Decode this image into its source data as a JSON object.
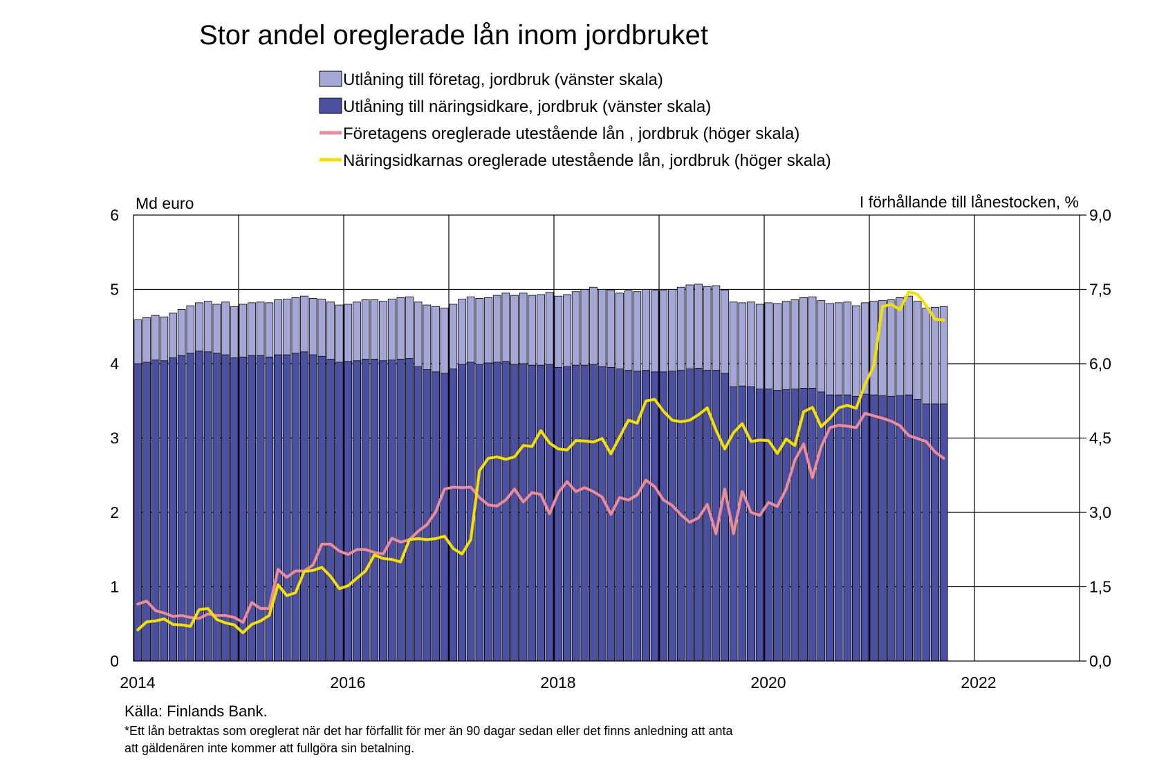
{
  "chart_data": {
    "type": "bar",
    "title": "Stor andel oreglerade lån inom jordbruket",
    "y_left_label": "Md euro",
    "y_right_label": "I förhållande till lånestocken, %",
    "y_left_ticks": [
      "0",
      "1",
      "2",
      "3",
      "4",
      "5",
      "6"
    ],
    "y_right_ticks": [
      "0,0",
      "1,5",
      "3,0",
      "4,5",
      "6,0",
      "7,5",
      "9,0"
    ],
    "ylim_left": [
      0,
      6
    ],
    "ylim_right": [
      0,
      9
    ],
    "x_ticks": [
      "2014",
      "2016",
      "2018",
      "2020",
      "2022"
    ],
    "x_range": [
      "2014-01",
      "2022-12"
    ],
    "grid": "horizontal and yearly vertical",
    "legend_position": "top",
    "colors": {
      "foretag": "#A4A7D6",
      "naringsidkare": "#4A4FA2",
      "foretag_npl": "#EC8C98",
      "naringsidkare_npl": "#F5E100"
    },
    "legend": [
      {
        "label": "Utlåning till företag, jordbruk (vänster skala)",
        "kind": "box",
        "color_key": "foretag"
      },
      {
        "label": "Utlåning till näringsidkare, jordbruk (vänster skala)",
        "kind": "box",
        "color_key": "naringsidkare"
      },
      {
        "label": "Företagens oreglerade utestående lån , jordbruk (höger skala)",
        "kind": "line",
        "color_key": "foretag_npl"
      },
      {
        "label": "Näringsidkarnas oreglerade utestående lån, jordbruk (höger skala)",
        "kind": "line",
        "color_key": "naringsidkare_npl"
      }
    ],
    "x_start": "2014-01",
    "series": [
      {
        "name": "Utlåning till företag, jordbruk (vänster skala)",
        "type": "bar",
        "axis": "left",
        "color_key": "foretag",
        "values": [
          4.59,
          4.62,
          4.65,
          4.63,
          4.68,
          4.73,
          4.78,
          4.82,
          4.84,
          4.8,
          4.83,
          4.77,
          4.8,
          4.82,
          4.83,
          4.82,
          4.86,
          4.87,
          4.89,
          4.91,
          4.88,
          4.87,
          4.83,
          4.79,
          4.8,
          4.83,
          4.86,
          4.86,
          4.84,
          4.87,
          4.89,
          4.9,
          4.83,
          4.79,
          4.77,
          4.75,
          4.8,
          4.87,
          4.9,
          4.88,
          4.89,
          4.92,
          4.95,
          4.92,
          4.95,
          4.92,
          4.93,
          4.96,
          4.91,
          4.93,
          4.97,
          5.0,
          5.03,
          5.0,
          4.99,
          4.95,
          4.98,
          4.97,
          5.0,
          4.98,
          4.98,
          5.0,
          5.03,
          5.06,
          5.07,
          5.04,
          5.05,
          4.99,
          4.83,
          4.82,
          4.83,
          4.8,
          4.82,
          4.81,
          4.84,
          4.86,
          4.89,
          4.9,
          4.85,
          4.81,
          4.82,
          4.83,
          4.78,
          4.82,
          4.84,
          4.85,
          4.86,
          4.89,
          4.91,
          4.84,
          4.75,
          4.76,
          4.77
        ]
      },
      {
        "name": "Utlåning till näringsidkare, jordbruk (vänster skala)",
        "type": "bar",
        "axis": "left",
        "color_key": "naringsidkare",
        "values": [
          4.0,
          4.02,
          4.05,
          4.04,
          4.08,
          4.11,
          4.14,
          4.17,
          4.16,
          4.14,
          4.12,
          4.08,
          4.09,
          4.11,
          4.11,
          4.09,
          4.12,
          4.12,
          4.14,
          4.16,
          4.12,
          4.1,
          4.06,
          4.02,
          4.03,
          4.04,
          4.06,
          4.06,
          4.04,
          4.05,
          4.06,
          4.07,
          3.96,
          3.92,
          3.89,
          3.87,
          3.93,
          3.99,
          4.02,
          3.99,
          4.01,
          4.02,
          4.03,
          3.99,
          4.0,
          3.98,
          3.98,
          3.99,
          3.95,
          3.96,
          3.98,
          3.98,
          3.99,
          3.96,
          3.95,
          3.93,
          3.91,
          3.9,
          3.91,
          3.89,
          3.89,
          3.9,
          3.91,
          3.93,
          3.94,
          3.91,
          3.91,
          3.87,
          3.69,
          3.7,
          3.69,
          3.66,
          3.66,
          3.64,
          3.65,
          3.66,
          3.67,
          3.67,
          3.62,
          3.58,
          3.58,
          3.58,
          3.56,
          3.59,
          3.58,
          3.57,
          3.56,
          3.57,
          3.58,
          3.52,
          3.46,
          3.46,
          3.46
        ]
      },
      {
        "name": "Företagens oreglerade utestående lån , jordbruk (höger skala)",
        "type": "line",
        "axis": "right",
        "color_key": "foretag_npl",
        "values": [
          1.15,
          1.21,
          1.02,
          0.97,
          0.9,
          0.92,
          0.88,
          0.86,
          0.95,
          0.92,
          0.92,
          0.88,
          0.78,
          1.18,
          1.06,
          1.06,
          1.85,
          1.69,
          1.82,
          1.82,
          1.94,
          2.36,
          2.36,
          2.22,
          2.15,
          2.25,
          2.25,
          2.19,
          2.16,
          2.48,
          2.4,
          2.45,
          2.62,
          2.75,
          3.01,
          3.47,
          3.51,
          3.5,
          3.51,
          3.3,
          3.15,
          3.13,
          3.25,
          3.47,
          3.21,
          3.4,
          3.36,
          2.97,
          3.4,
          3.62,
          3.42,
          3.5,
          3.42,
          3.31,
          2.96,
          3.3,
          3.25,
          3.35,
          3.65,
          3.52,
          3.25,
          3.14,
          2.95,
          2.8,
          2.89,
          3.16,
          2.57,
          3.47,
          2.57,
          3.42,
          3.0,
          2.94,
          3.2,
          3.12,
          3.47,
          4.05,
          4.38,
          3.7,
          4.32,
          4.71,
          4.76,
          4.74,
          4.71,
          5.0,
          4.95,
          4.9,
          4.84,
          4.75,
          4.55,
          4.49,
          4.43,
          4.22,
          4.09
        ]
      },
      {
        "name": "Näringsidkarnas oreglerade utestående lån, jordbruk (höger skala)",
        "type": "line",
        "axis": "right",
        "color_key": "naringsidkare_npl",
        "values": [
          0.63,
          0.79,
          0.81,
          0.85,
          0.74,
          0.73,
          0.7,
          1.04,
          1.06,
          0.84,
          0.77,
          0.73,
          0.57,
          0.74,
          0.81,
          0.92,
          1.54,
          1.32,
          1.38,
          1.81,
          1.83,
          1.89,
          1.71,
          1.46,
          1.52,
          1.67,
          1.82,
          2.14,
          2.07,
          2.05,
          2.0,
          2.45,
          2.47,
          2.45,
          2.47,
          2.52,
          2.27,
          2.16,
          2.45,
          3.84,
          4.09,
          4.12,
          4.07,
          4.12,
          4.35,
          4.33,
          4.65,
          4.4,
          4.28,
          4.26,
          4.45,
          4.44,
          4.42,
          4.49,
          4.18,
          4.52,
          4.86,
          4.8,
          5.25,
          5.28,
          5.04,
          4.86,
          4.83,
          4.86,
          4.97,
          5.11,
          4.66,
          4.28,
          4.61,
          4.79,
          4.43,
          4.46,
          4.45,
          4.19,
          4.48,
          4.35,
          5.03,
          5.12,
          4.73,
          4.9,
          5.11,
          5.16,
          5.1,
          5.58,
          5.95,
          7.15,
          7.2,
          7.09,
          7.45,
          7.4,
          7.17,
          6.9,
          6.88
        ]
      }
    ]
  },
  "footer": {
    "source": "Källa: Finlands Bank.",
    "note_line1": "*Ett lån betraktas som oreglerat när det har förfallit för mer än 90 dagar sedan eller det finns anledning  att anta",
    "note_line2": "att gäldenären  inte kommer  att fullgöra  sin betalning."
  }
}
